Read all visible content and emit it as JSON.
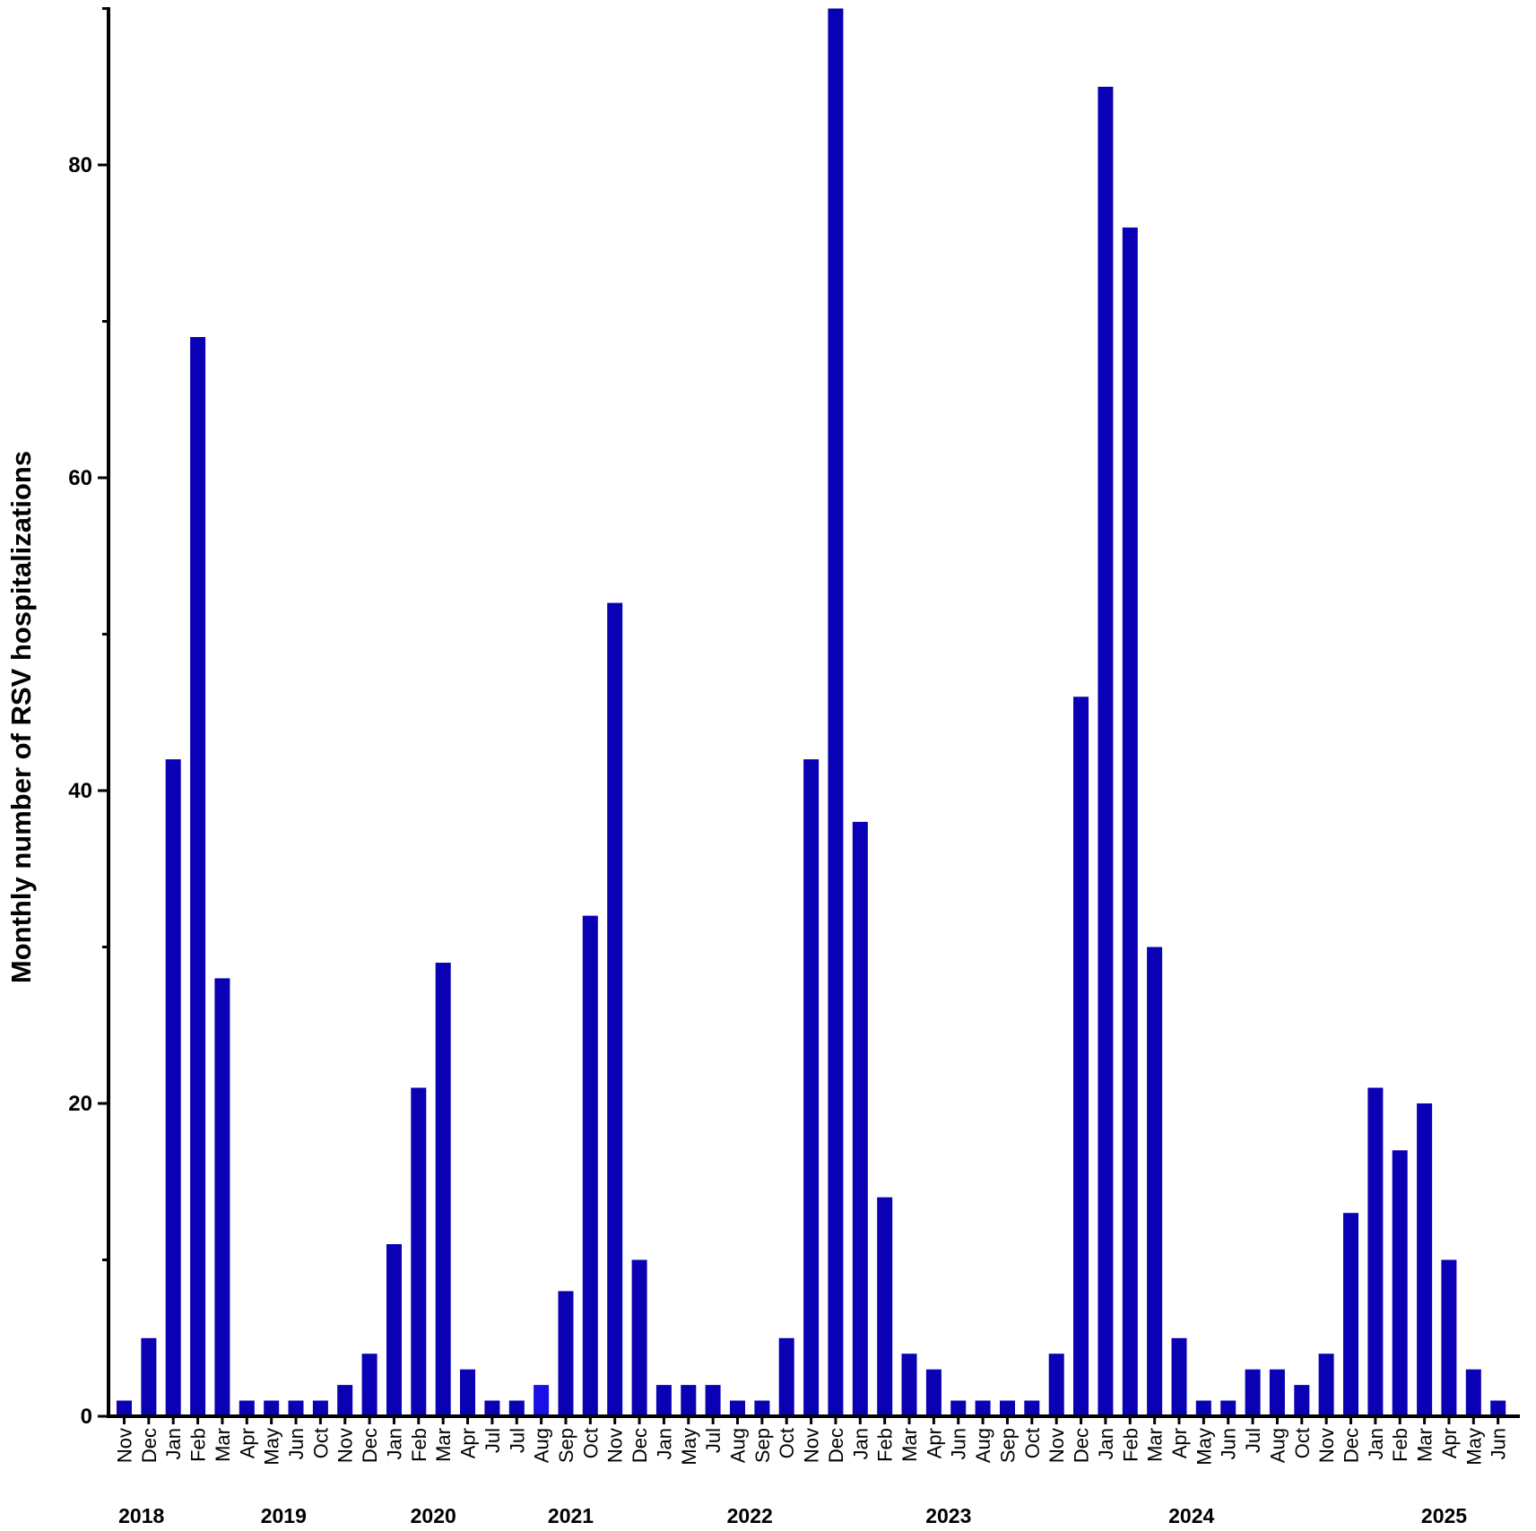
{
  "chart_data": {
    "type": "bar",
    "title": "",
    "xlabel": "",
    "ylabel": "Monthly number of RSV hospitalizations",
    "ylim": [
      0,
      90
    ],
    "yticks": [
      0,
      20,
      40,
      60,
      80
    ],
    "grid": false,
    "colors": {
      "bar": "#0a00b4",
      "bar_alt": "#1a10e6",
      "axis": "#000000"
    },
    "categories": [
      "Nov",
      "Dec",
      "Jan",
      "Feb",
      "Mar",
      "Apr",
      "May",
      "Jun",
      "Oct",
      "Nov",
      "Dec",
      "Jan",
      "Feb",
      "Mar",
      "Apr",
      "Jul",
      "Jul",
      "Aug",
      "Sep",
      "Oct",
      "Nov",
      "Dec",
      "Jan",
      "May",
      "Jul",
      "Aug",
      "Sep",
      "Oct",
      "Nov",
      "Dec",
      "Jan",
      "Feb",
      "Mar",
      "Apr",
      "Jun",
      "Aug",
      "Sep",
      "Oct",
      "Nov",
      "Dec",
      "Jan",
      "Feb",
      "Mar",
      "Apr",
      "May",
      "Jun",
      "Jul",
      "Aug",
      "Oct",
      "Nov",
      "Dec",
      "Jan",
      "Feb",
      "Mar",
      "Apr",
      "May",
      "Jun"
    ],
    "values": [
      1,
      5,
      42,
      69,
      28,
      1,
      1,
      1,
      1,
      2,
      4,
      11,
      21,
      29,
      3,
      1,
      1,
      2,
      8,
      32,
      52,
      10,
      2,
      2,
      2,
      1,
      1,
      5,
      42,
      90,
      38,
      14,
      4,
      3,
      1,
      1,
      1,
      1,
      4,
      46,
      85,
      76,
      30,
      5,
      1,
      1,
      3,
      3,
      2,
      4,
      13,
      21,
      17,
      20,
      10,
      3,
      1
    ],
    "year_labels": [
      {
        "label": "2018",
        "at_index": 0.7
      },
      {
        "label": "2019",
        "at_index": 6.5
      },
      {
        "label": "2020",
        "at_index": 12.6
      },
      {
        "label": "2021",
        "at_index": 18.2
      },
      {
        "label": "2022",
        "at_index": 25.5
      },
      {
        "label": "2023",
        "at_index": 33.6
      },
      {
        "label": "2024",
        "at_index": 43.5
      },
      {
        "label": "2025",
        "at_index": 53.8
      }
    ]
  }
}
